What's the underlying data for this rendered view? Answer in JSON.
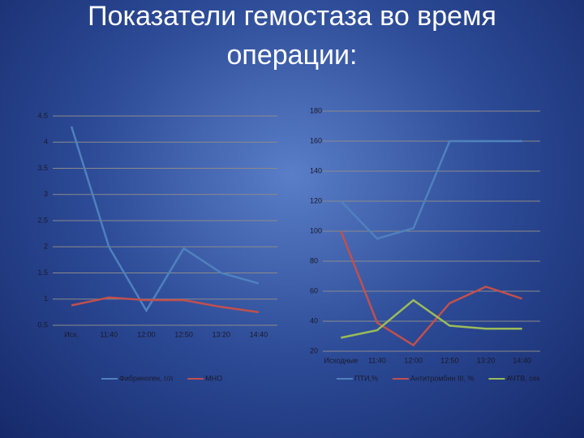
{
  "title": "Показатели гемостаза во время операции:",
  "chart_data": [
    {
      "type": "line",
      "categories": [
        "Исх.",
        "11:40",
        "12:00",
        "12:50",
        "13:20",
        "14:40"
      ],
      "series": [
        {
          "name": "Фибриноген, г/л",
          "color": "#4f81bd",
          "values": [
            4.3,
            2.0,
            0.78,
            1.97,
            1.5,
            1.3
          ]
        },
        {
          "name": "МНО",
          "color": "#c0504d",
          "values": [
            0.88,
            1.03,
            0.98,
            0.98,
            0.85,
            0.75
          ]
        }
      ],
      "ylim": [
        0.5,
        4.5
      ],
      "yticks": [
        0.5,
        1,
        1.5,
        2,
        2.5,
        3,
        3.5,
        4,
        4.5
      ],
      "grid": true,
      "legend": "bottom"
    },
    {
      "type": "line",
      "categories": [
        "Исходные",
        "11:40",
        "12:00",
        "12:50",
        "13:20",
        "14:40"
      ],
      "series": [
        {
          "name": "ПТИ,%",
          "color": "#4f81bd",
          "values": [
            120,
            95,
            102,
            160,
            160,
            160
          ]
        },
        {
          "name": "Антитромбин III, %",
          "color": "#c0504d",
          "values": [
            100,
            39,
            24,
            52,
            63,
            55
          ]
        },
        {
          "name": "АЧТВ, сек",
          "color": "#9bbb59",
          "values": [
            29,
            34,
            54,
            37,
            35,
            35
          ]
        }
      ],
      "ylim": [
        20,
        180
      ],
      "yticks": [
        20,
        40,
        60,
        80,
        100,
        120,
        140,
        160,
        180
      ],
      "grid": true,
      "legend": "bottom"
    }
  ]
}
